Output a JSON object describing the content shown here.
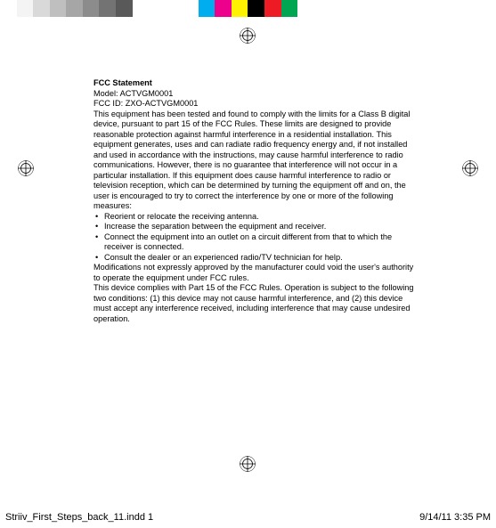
{
  "colorbar": {
    "swatch_width": 19,
    "colors": [
      "#ffffff",
      "#f4f4f4",
      "#d9d9d9",
      "#bfbfbf",
      "#a6a6a6",
      "#8c8c8c",
      "#737373",
      "#595959",
      "#ffffff",
      "#ffffff",
      "#ffffff",
      "#ffffff",
      "#00aeef",
      "#ec008c",
      "#fff200",
      "#000000",
      "#ed1c24",
      "#00a651",
      "#ffffff",
      "#ffffff",
      "#ffffff",
      "#ffffff",
      "#ffffff",
      "#ffffff",
      "#ffffff",
      "#ffffff",
      "#ffffff",
      "#ffffff",
      "#ffffff",
      "#ffffff"
    ]
  },
  "registration_mark_color": "#000000",
  "doc": {
    "heading": "FCC Statement",
    "model": "Model: ACTVGM0001",
    "fcc_id": "FCC ID: ZXO-ACTVGM0001",
    "p1": "This equipment has been tested and found to comply with the limits for a Class B digital device, pursuant to part 15 of the FCC Rules. These limits are designed to provide reasonable protection against harmful interference in a residential installation. This equipment generates, uses and can radiate radio frequency energy and, if not installed and used in accordance with the instructions, may cause harmful interference to radio communications. However, there is no guarantee that interference will not occur in a particular installation. If this equipment does cause harmful interference to radio or television reception, which can be determined by turning the equipment off and on, the user is encouraged to try to correct the interference by one or more of the following measures:",
    "bullets": [
      "Reorient or relocate the receiving antenna.",
      "Increase the separation between the equipment and receiver.",
      "Connect the equipment into an outlet on a circuit different from that to which the receiver is connected.",
      "Consult the dealer or an experienced radio/TV technician for help."
    ],
    "p2": "Modifications not expressly approved by the manufacturer could void the user's authority to operate the equipment under FCC rules.",
    "p3": "This device complies with Part 15 of the FCC Rules. Operation is subject to the following two conditions: (1) this device may not cause harmful interference, and (2) this device must accept any interference received, including interference that may cause undesired operation."
  },
  "footer": {
    "left": "Striiv_First_Steps_back_11.indd   1",
    "right": "9/14/11   3:35 PM"
  }
}
